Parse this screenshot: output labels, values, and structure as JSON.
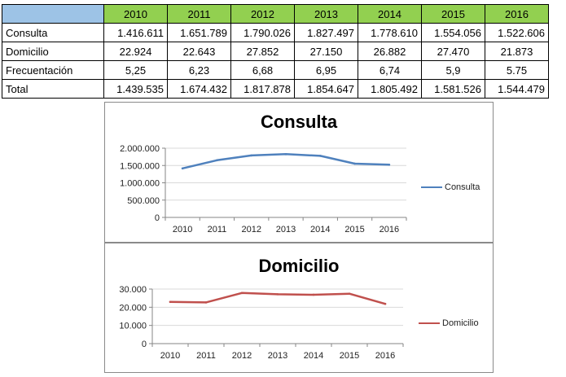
{
  "table": {
    "headers": [
      "2010",
      "2011",
      "2012",
      "2013",
      "2014",
      "2015",
      "2016"
    ],
    "rows": [
      {
        "label": "Consulta",
        "values": [
          "1.416.611",
          "1.651.789",
          "1.790.026",
          "1.827.497",
          "1.778.610",
          "1.554.056",
          "1.522.606"
        ]
      },
      {
        "label": "Domicilio",
        "values": [
          "22.924",
          "22.643",
          "27.852",
          "27.150",
          "26.882",
          "27.470",
          "21.873"
        ]
      },
      {
        "label": "Frecuentación",
        "values": [
          "5,25",
          "6,23",
          "6,68",
          "6,95",
          "6,74",
          "5,9",
          "5.75"
        ]
      },
      {
        "label": "Total",
        "values": [
          "1.439.535",
          "1.674.432",
          "1.817.878",
          "1.854.647",
          "1.805.492",
          "1.581.526",
          "1.544.479"
        ]
      }
    ],
    "colors": {
      "header": "#92d050",
      "corner": "#9dc3e6"
    }
  },
  "chart_data": [
    {
      "type": "line",
      "title": "Consulta",
      "x": [
        "2010",
        "2011",
        "2012",
        "2013",
        "2014",
        "2015",
        "2016"
      ],
      "series": [
        {
          "name": "Consulta",
          "values": [
            1416611,
            1651789,
            1790026,
            1827497,
            1778610,
            1554056,
            1522606
          ],
          "color": "#4f81bd"
        }
      ],
      "ylim": [
        0,
        2000000
      ],
      "yticks": [
        0,
        500000,
        1000000,
        1500000,
        2000000
      ],
      "ytick_labels": [
        "0",
        "500.000",
        "1.000.000",
        "1.500.000",
        "2.000.000"
      ],
      "grid": true,
      "legend": "right"
    },
    {
      "type": "line",
      "title": "Domicilio",
      "x": [
        "2010",
        "2011",
        "2012",
        "2013",
        "2014",
        "2015",
        "2016"
      ],
      "series": [
        {
          "name": "Domicilio",
          "values": [
            22924,
            22643,
            27852,
            27150,
            26882,
            27470,
            21873
          ],
          "color": "#c0504d"
        }
      ],
      "ylim": [
        0,
        30000
      ],
      "yticks": [
        0,
        10000,
        20000,
        30000
      ],
      "ytick_labels": [
        "0",
        "10.000",
        "20.000",
        "30.000"
      ],
      "grid": true,
      "legend": "right"
    }
  ]
}
